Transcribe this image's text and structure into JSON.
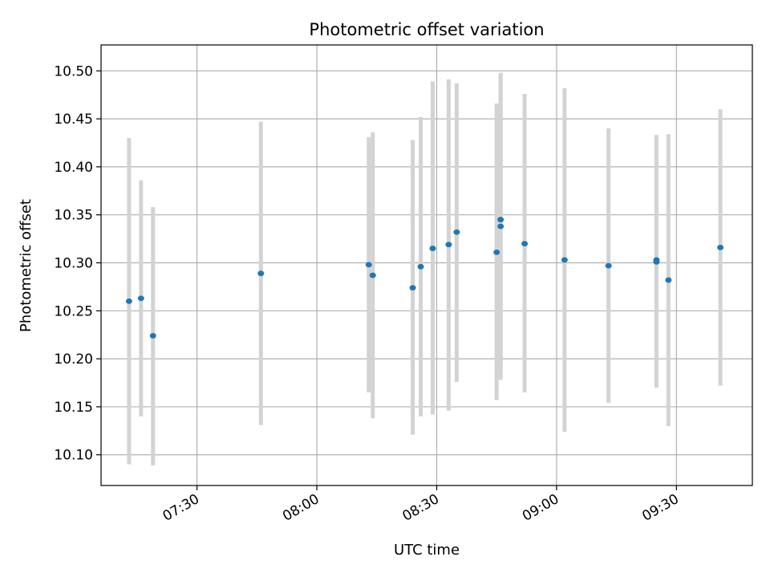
{
  "chart_data": {
    "type": "scatter",
    "title": "Photometric offset variation",
    "xlabel": "UTC time",
    "ylabel": "Photometric offset",
    "x_axis": "time (HH:MM UTC)",
    "xlim": [
      "07:06",
      "09:49"
    ],
    "ylim": [
      10.068,
      10.527
    ],
    "x_ticks": [
      "07:30",
      "08:00",
      "08:30",
      "09:00",
      "09:30"
    ],
    "y_ticks": [
      "10.10",
      "10.15",
      "10.20",
      "10.25",
      "10.30",
      "10.35",
      "10.40",
      "10.45",
      "10.50"
    ],
    "grid": true,
    "point_color": "#1f77b4",
    "errorbar_color": "#d3d3d3",
    "points": [
      {
        "x": "07:13",
        "y": 10.26,
        "ylow": 10.09,
        "yhigh": 10.43
      },
      {
        "x": "07:16",
        "y": 10.263,
        "ylow": 10.14,
        "yhigh": 10.386
      },
      {
        "x": "07:19",
        "y": 10.224,
        "ylow": 10.089,
        "yhigh": 10.358
      },
      {
        "x": "07:46",
        "y": 10.289,
        "ylow": 10.131,
        "yhigh": 10.447
      },
      {
        "x": "08:13",
        "y": 10.298,
        "ylow": 10.165,
        "yhigh": 10.431
      },
      {
        "x": "08:14",
        "y": 10.287,
        "ylow": 10.138,
        "yhigh": 10.436
      },
      {
        "x": "08:24",
        "y": 10.274,
        "ylow": 10.121,
        "yhigh": 10.428
      },
      {
        "x": "08:26",
        "y": 10.296,
        "ylow": 10.14,
        "yhigh": 10.452
      },
      {
        "x": "08:29",
        "y": 10.315,
        "ylow": 10.142,
        "yhigh": 10.489
      },
      {
        "x": "08:33",
        "y": 10.319,
        "ylow": 10.146,
        "yhigh": 10.491
      },
      {
        "x": "08:35",
        "y": 10.332,
        "ylow": 10.176,
        "yhigh": 10.487
      },
      {
        "x": "08:45",
        "y": 10.311,
        "ylow": 10.157,
        "yhigh": 10.466
      },
      {
        "x": "08:46",
        "y": 10.345,
        "ylow": 10.192,
        "yhigh": 10.497
      },
      {
        "x": "08:46",
        "y": 10.338,
        "ylow": 10.178,
        "yhigh": 10.498
      },
      {
        "x": "08:52",
        "y": 10.32,
        "ylow": 10.165,
        "yhigh": 10.476
      },
      {
        "x": "09:02",
        "y": 10.303,
        "ylow": 10.124,
        "yhigh": 10.482
      },
      {
        "x": "09:13",
        "y": 10.297,
        "ylow": 10.154,
        "yhigh": 10.44
      },
      {
        "x": "09:25",
        "y": 10.301,
        "ylow": 10.17,
        "yhigh": 10.433
      },
      {
        "x": "09:25",
        "y": 10.303,
        "ylow": 10.173,
        "yhigh": 10.433
      },
      {
        "x": "09:28",
        "y": 10.282,
        "ylow": 10.13,
        "yhigh": 10.434
      },
      {
        "x": "09:41",
        "y": 10.316,
        "ylow": 10.172,
        "yhigh": 10.46
      }
    ]
  }
}
